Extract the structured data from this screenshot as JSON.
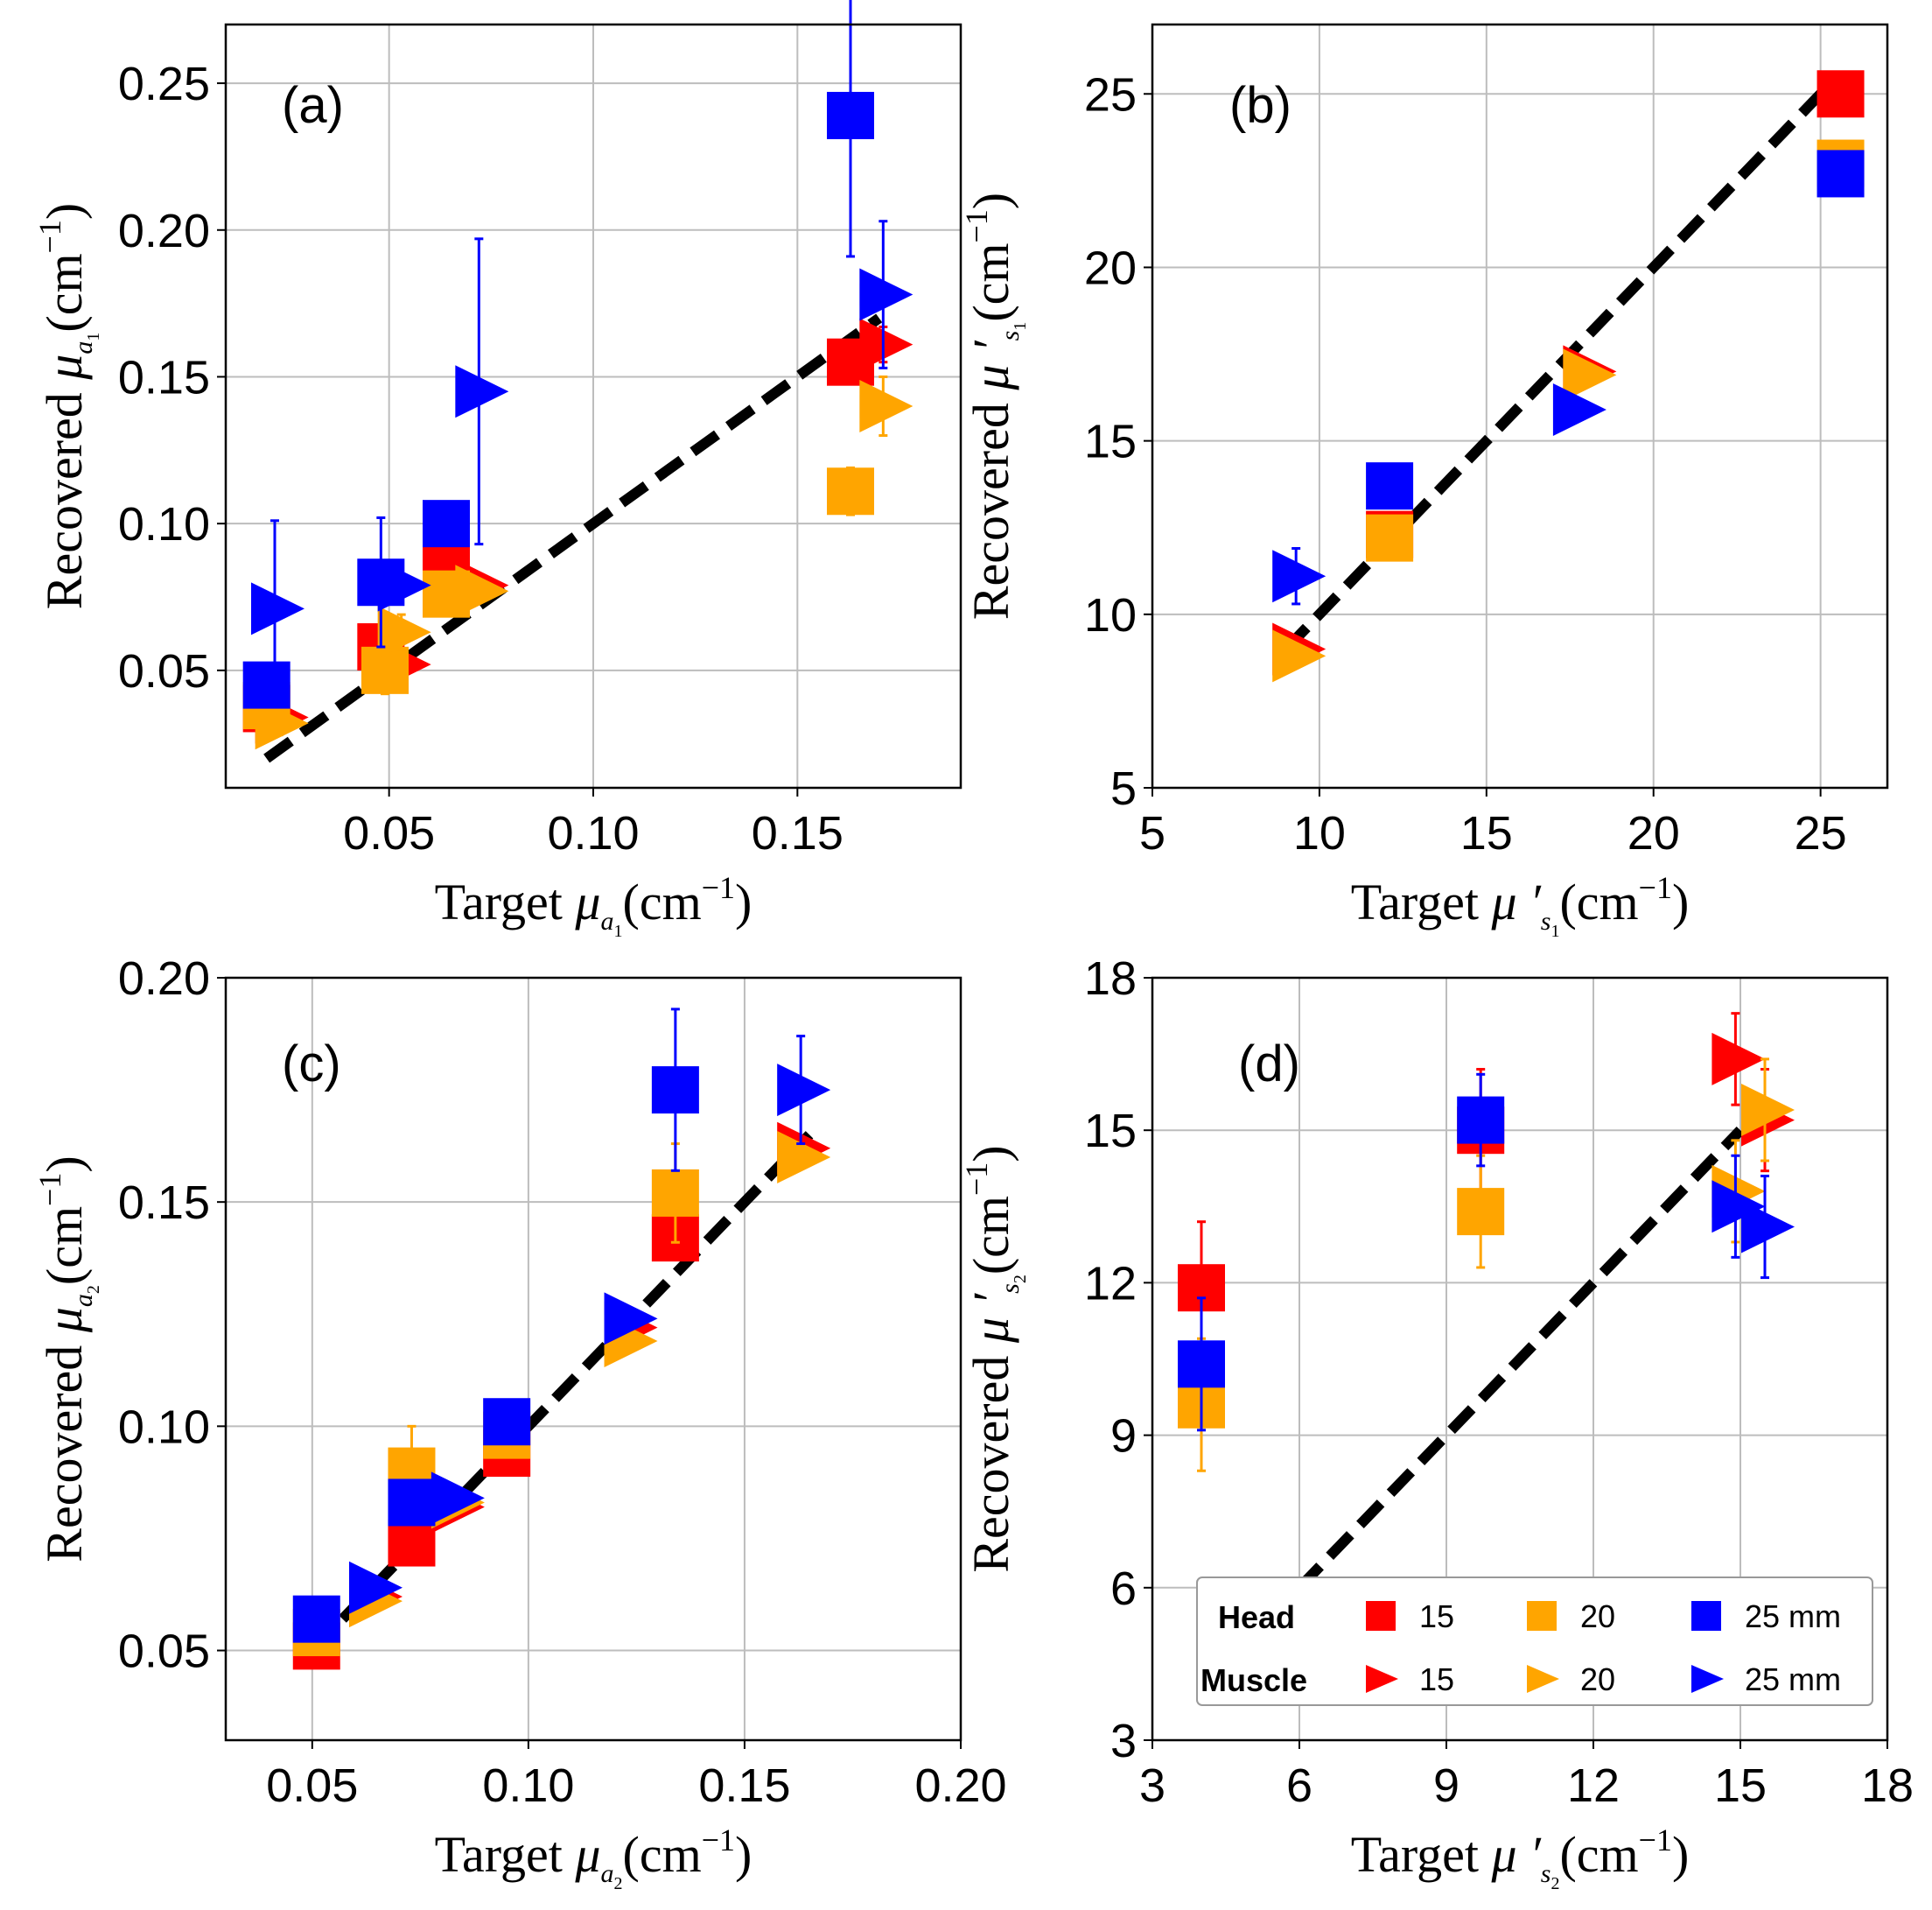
{
  "colors": {
    "c15": "#ff0000",
    "c20": "#ffa500",
    "c25": "#0000ff",
    "diag": "#000000",
    "grid": "#bdbdbd"
  },
  "legend": {
    "head_label": "Head",
    "muscle_label": "Muscle",
    "items": [
      "15",
      "20",
      "25 mm"
    ]
  },
  "chart_data": [
    {
      "type": "scatter",
      "label": "(a)",
      "xlabel_pre": "Target ",
      "ylabel_pre": "Recovered ",
      "sym": "μ",
      "sub": "a",
      "subsub": "1",
      "unit": "(cm",
      "unit_exp": "−1",
      "unit_close": ")",
      "xlim": [
        0.01,
        0.19
      ],
      "ylim": [
        0.01,
        0.27
      ],
      "xticks": [
        0.05,
        0.1,
        0.15
      ],
      "xtick_labels": [
        "0.05",
        "0.10",
        "0.15"
      ],
      "yticks": [
        0.05,
        0.1,
        0.15,
        0.2,
        0.25
      ],
      "ytick_labels": [
        "0.05",
        "0.10",
        "0.15",
        "0.20",
        "0.25"
      ],
      "diag": [
        0.02,
        0.17
      ],
      "series": [
        {
          "name": "Head 15",
          "marker": "square",
          "color": "c15",
          "points": [
            [
              0.02,
              0.037,
              0
            ],
            [
              0.048,
              0.058,
              0
            ],
            [
              0.064,
              0.087,
              0
            ],
            [
              0.163,
              0.155,
              0
            ]
          ]
        },
        {
          "name": "Head 20",
          "marker": "square",
          "color": "c20",
          "points": [
            [
              0.02,
              0.038,
              0.005
            ],
            [
              0.049,
              0.05,
              0.008
            ],
            [
              0.064,
              0.076,
              0
            ],
            [
              0.163,
              0.111,
              0.008
            ]
          ]
        },
        {
          "name": "Head 25",
          "marker": "square",
          "color": "c25",
          "points": [
            [
              0.02,
              0.045,
              0
            ],
            [
              0.048,
              0.08,
              0.022
            ],
            [
              0.064,
              0.1,
              0
            ],
            [
              0.163,
              0.239,
              0.048
            ]
          ]
        },
        {
          "name": "Muscle 15",
          "marker": "triangle",
          "color": "c15",
          "points": [
            [
              0.023,
              0.034,
              0
            ],
            [
              0.053,
              0.052,
              0
            ],
            [
              0.072,
              0.079,
              0
            ],
            [
              0.171,
              0.161,
              0.006
            ]
          ]
        },
        {
          "name": "Muscle 20",
          "marker": "triangle",
          "color": "c20",
          "points": [
            [
              0.023,
              0.032,
              0.004
            ],
            [
              0.053,
              0.063,
              0.006
            ],
            [
              0.072,
              0.077,
              0
            ],
            [
              0.171,
              0.14,
              0.01
            ]
          ]
        },
        {
          "name": "Muscle 25",
          "marker": "triangle",
          "color": "c25",
          "points": [
            [
              0.022,
              0.071,
              0.03
            ],
            [
              0.053,
              0.079,
              0
            ],
            [
              0.072,
              0.145,
              0.052
            ],
            [
              0.171,
              0.178,
              0.025
            ]
          ]
        }
      ]
    },
    {
      "type": "scatter",
      "label": "(b)",
      "xlabel_pre": "Target ",
      "ylabel_pre": "Recovered ",
      "sym": "μ ′",
      "sub": "s",
      "subsub": "1",
      "unit": "(cm",
      "unit_exp": "−1",
      "unit_close": ")",
      "xlim": [
        5,
        27
      ],
      "ylim": [
        5,
        27
      ],
      "xticks": [
        5,
        10,
        15,
        20,
        25
      ],
      "xtick_labels": [
        "5",
        "10",
        "15",
        "20",
        "25"
      ],
      "yticks": [
        5,
        10,
        15,
        20,
        25
      ],
      "ytick_labels": [
        "5",
        "10",
        "15",
        "20",
        "25"
      ],
      "diag": [
        9,
        25.5
      ],
      "series": [
        {
          "name": "Head 15",
          "marker": "square",
          "color": "c15",
          "points": [
            [
              12.1,
              12.3,
              0
            ],
            [
              25.6,
              25.0,
              0.3
            ]
          ]
        },
        {
          "name": "Head 20",
          "marker": "square",
          "color": "c20",
          "points": [
            [
              12.1,
              12.2,
              0
            ],
            [
              25.6,
              23.0,
              0.5
            ]
          ]
        },
        {
          "name": "Head 25",
          "marker": "square",
          "color": "c25",
          "points": [
            [
              12.1,
              13.7,
              0.6
            ],
            [
              25.6,
              22.7,
              0.3
            ]
          ]
        },
        {
          "name": "Muscle 15",
          "marker": "triangle",
          "color": "c15",
          "points": [
            [
              9.3,
              9.0,
              0
            ],
            [
              18.0,
              17.0,
              0
            ]
          ]
        },
        {
          "name": "Muscle 20",
          "marker": "triangle",
          "color": "c20",
          "points": [
            [
              9.3,
              8.8,
              0
            ],
            [
              18.0,
              16.9,
              0
            ]
          ]
        },
        {
          "name": "Muscle 25",
          "marker": "triangle",
          "color": "c25",
          "points": [
            [
              9.3,
              11.1,
              0.8
            ],
            [
              17.7,
              15.9,
              0
            ]
          ]
        }
      ]
    },
    {
      "type": "scatter",
      "label": "(c)",
      "xlabel_pre": "Target ",
      "ylabel_pre": "Recovered ",
      "sym": "μ",
      "sub": "a",
      "subsub": "2",
      "unit": "(cm",
      "unit_exp": "−1",
      "unit_close": ")",
      "xlim": [
        0.03,
        0.2
      ],
      "ylim": [
        0.03,
        0.2
      ],
      "xticks": [
        0.05,
        0.1,
        0.15,
        0.2
      ],
      "xtick_labels": [
        "0.05",
        "0.10",
        "0.15",
        "0.20"
      ],
      "yticks": [
        0.05,
        0.1,
        0.15,
        0.2
      ],
      "ytick_labels": [
        "0.05",
        "0.10",
        "0.15",
        "0.20"
      ],
      "diag": [
        0.05,
        0.165
      ],
      "series": [
        {
          "name": "Head 15",
          "marker": "square",
          "color": "c15",
          "points": [
            [
              0.051,
              0.051,
              0
            ],
            [
              0.073,
              0.074,
              0
            ],
            [
              0.095,
              0.094,
              0
            ],
            [
              0.134,
              0.142,
              0
            ]
          ]
        },
        {
          "name": "Head 20",
          "marker": "square",
          "color": "c20",
          "points": [
            [
              0.051,
              0.054,
              0
            ],
            [
              0.073,
              0.09,
              0.01
            ],
            [
              0.095,
              0.098,
              0
            ],
            [
              0.134,
              0.152,
              0.011
            ]
          ]
        },
        {
          "name": "Head 25",
          "marker": "square",
          "color": "c25",
          "points": [
            [
              0.051,
              0.057,
              0
            ],
            [
              0.073,
              0.083,
              0
            ],
            [
              0.095,
              0.101,
              0
            ],
            [
              0.134,
              0.175,
              0.018
            ]
          ]
        },
        {
          "name": "Muscle 15",
          "marker": "triangle",
          "color": "c15",
          "points": [
            [
              0.064,
              0.062,
              0
            ],
            [
              0.083,
              0.082,
              0
            ],
            [
              0.123,
              0.122,
              0
            ],
            [
              0.163,
              0.162,
              0
            ]
          ]
        },
        {
          "name": "Muscle 20",
          "marker": "triangle",
          "color": "c20",
          "points": [
            [
              0.064,
              0.061,
              0
            ],
            [
              0.083,
              0.083,
              0
            ],
            [
              0.123,
              0.119,
              0
            ],
            [
              0.163,
              0.16,
              0
            ]
          ]
        },
        {
          "name": "Muscle 25",
          "marker": "triangle",
          "color": "c25",
          "points": [
            [
              0.064,
              0.064,
              0
            ],
            [
              0.083,
              0.084,
              0
            ],
            [
              0.123,
              0.124,
              0
            ],
            [
              0.163,
              0.175,
              0.012
            ]
          ]
        }
      ]
    },
    {
      "type": "scatter",
      "label": "(d)",
      "xlabel_pre": "Target ",
      "ylabel_pre": "Recovered ",
      "sym": "μ ′",
      "sub": "s",
      "subsub": "2",
      "unit": "(cm",
      "unit_exp": "−1",
      "unit_close": ")",
      "xlim": [
        3,
        18
      ],
      "ylim": [
        3,
        18
      ],
      "xticks": [
        3,
        6,
        9,
        12,
        15,
        18
      ],
      "xtick_labels": [
        "3",
        "6",
        "9",
        "12",
        "15",
        "18"
      ],
      "yticks": [
        3,
        6,
        9,
        12,
        15,
        18
      ],
      "ytick_labels": [
        "3",
        "6",
        "9",
        "12",
        "15",
        "18"
      ],
      "diag": [
        6,
        15
      ],
      "series": [
        {
          "name": "Head 15",
          "marker": "square",
          "color": "c15",
          "points": [
            [
              4.0,
              11.9,
              1.3
            ],
            [
              9.7,
              15.0,
              1.2
            ]
          ]
        },
        {
          "name": "Head 20",
          "marker": "square",
          "color": "c20",
          "points": [
            [
              4.0,
              9.6,
              1.3
            ],
            [
              9.7,
              13.4,
              1.1
            ]
          ]
        },
        {
          "name": "Head 25",
          "marker": "square",
          "color": "c25",
          "points": [
            [
              4.0,
              10.4,
              1.3
            ],
            [
              9.7,
              15.2,
              0.9
            ]
          ]
        },
        {
          "name": "Muscle 15",
          "marker": "triangle",
          "color": "c15",
          "points": [
            [
              14.9,
              16.4,
              0.9
            ],
            [
              15.5,
              15.2,
              1.0
            ]
          ]
        },
        {
          "name": "Muscle 20",
          "marker": "triangle",
          "color": "c20",
          "points": [
            [
              14.9,
              13.8,
              1.0
            ],
            [
              15.5,
              15.4,
              1.0
            ]
          ]
        },
        {
          "name": "Muscle 25",
          "marker": "triangle",
          "color": "c25",
          "points": [
            [
              14.9,
              13.5,
              1.0
            ],
            [
              15.5,
              13.1,
              1.0
            ]
          ]
        }
      ]
    }
  ]
}
